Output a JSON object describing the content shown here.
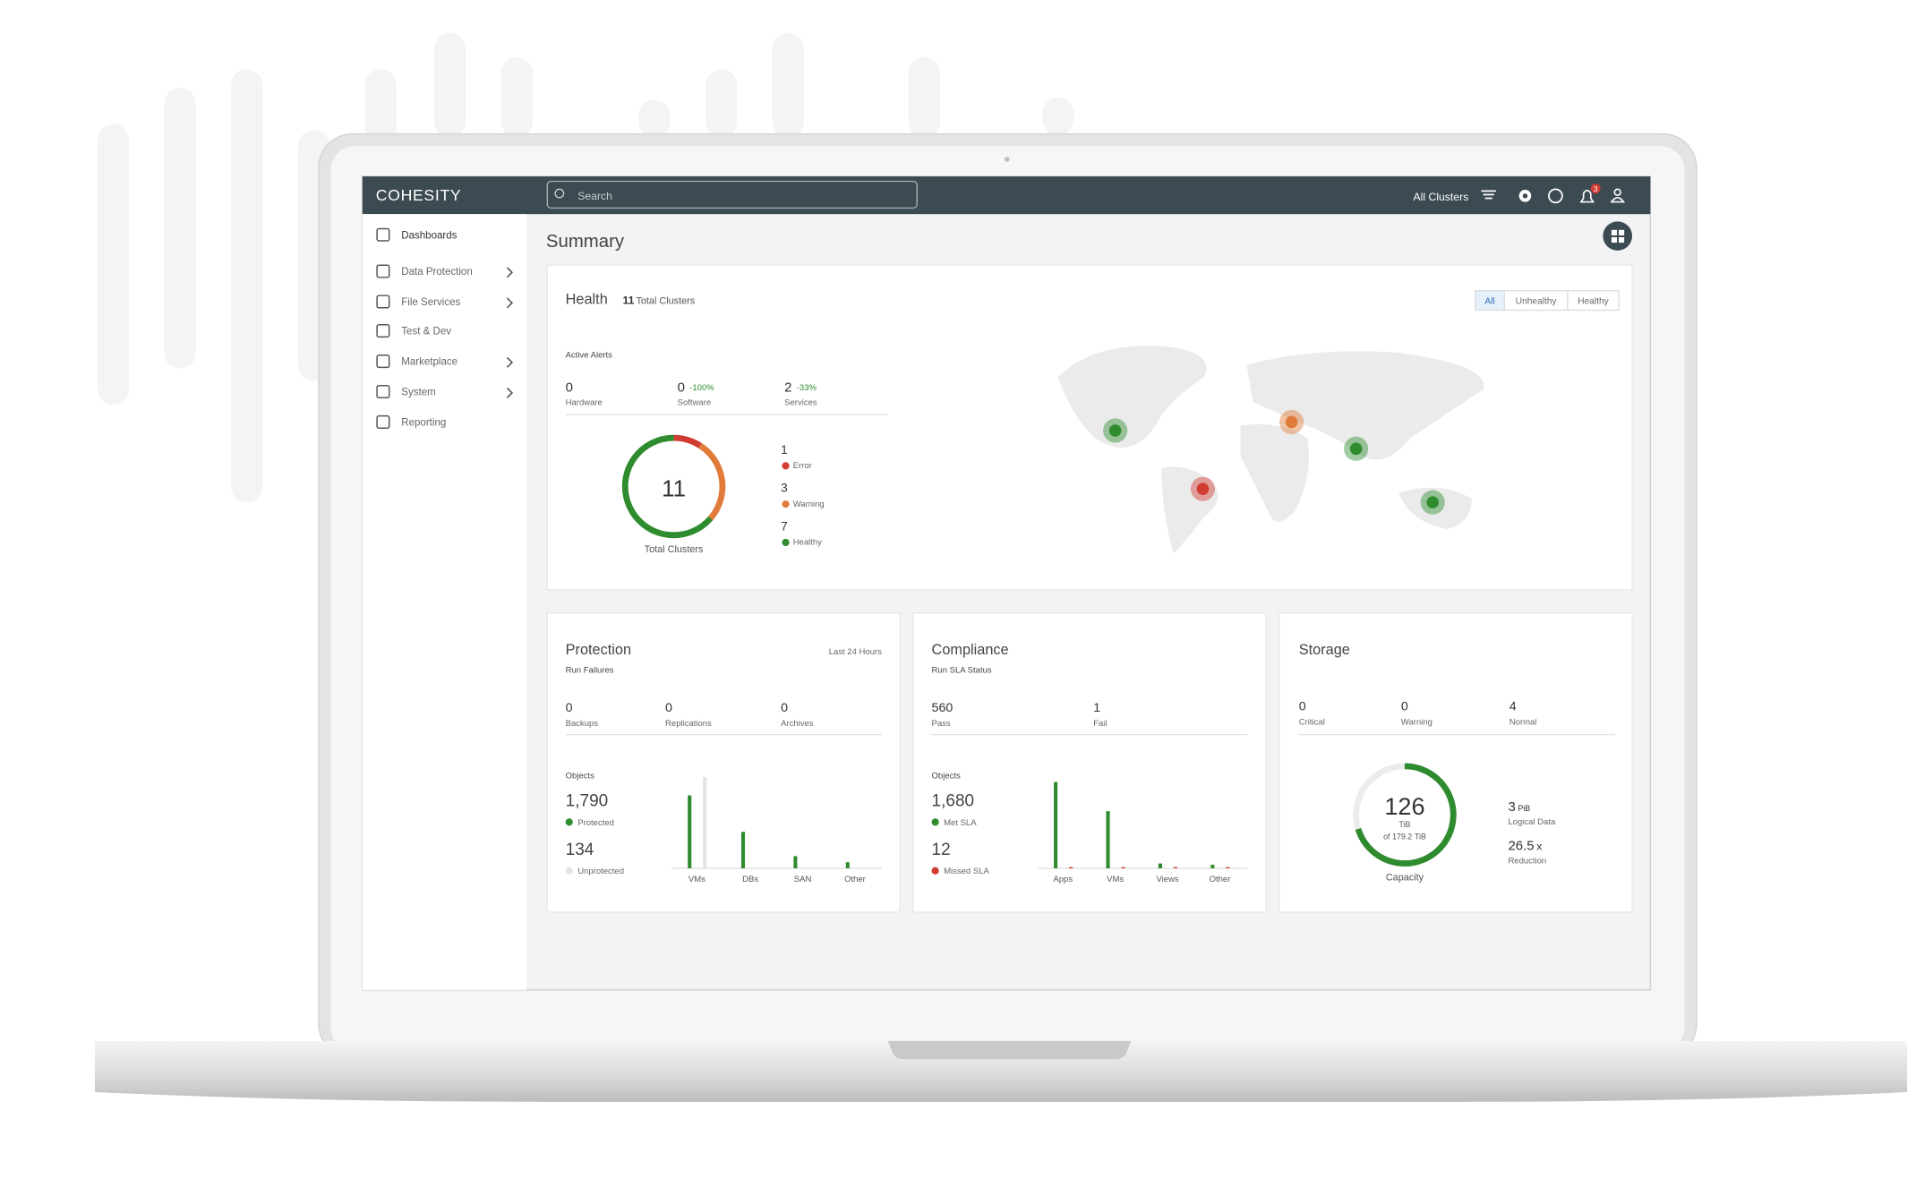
{
  "header": {
    "logo": "COHESITY",
    "search_placeholder": "Search",
    "cluster_filter": "All Clusters",
    "notifications": 3
  },
  "sidebar": {
    "items": [
      {
        "label": "Dashboards",
        "expandable": false
      },
      {
        "label": "Data Protection",
        "expandable": true
      },
      {
        "label": "File Services",
        "expandable": true
      },
      {
        "label": "Test & Dev",
        "expandable": false
      },
      {
        "label": "Marketplace",
        "expandable": true
      },
      {
        "label": "System",
        "expandable": true
      },
      {
        "label": "Reporting",
        "expandable": false
      }
    ]
  },
  "page_title": "Summary",
  "health": {
    "title": "Health",
    "total_clusters": 11,
    "total_clusters_label": "Total Clusters",
    "filters": [
      "All",
      "Unhealthy",
      "Healthy"
    ],
    "active_alerts_title": "Active Alerts",
    "alerts": [
      {
        "value": 0,
        "label": "Hardware"
      },
      {
        "value": 0,
        "change": "-100%",
        "label": "Software"
      },
      {
        "value": 2,
        "change": "-33%",
        "label": "Services"
      }
    ],
    "status": [
      {
        "value": 1,
        "label": "Error",
        "color": "#d23b32"
      },
      {
        "value": 3,
        "label": "Warning",
        "color": "#e07b39"
      },
      {
        "value": 7,
        "label": "Healthy",
        "color": "#2e8b2e"
      }
    ]
  },
  "protection": {
    "title": "Protection",
    "period": "Last 24 Hours",
    "subtitle": "Run Failures",
    "metrics": [
      {
        "value": 0,
        "label": "Backups"
      },
      {
        "value": 0,
        "label": "Replications"
      },
      {
        "value": 0,
        "label": "Archives"
      }
    ],
    "objects_title": "Objects",
    "primary": {
      "value": "1,790",
      "label": "Protected",
      "color": "#2e8b2e"
    },
    "secondary": {
      "value": "134",
      "label": "Unprotected",
      "color": "#e4e4e4"
    },
    "bars": {
      "categories": [
        "VMs",
        "DBs",
        "SAN",
        "Other"
      ],
      "ylim": [
        0,
        80
      ],
      "primary": [
        60,
        30,
        10,
        5
      ],
      "secondary": [
        75,
        0,
        0,
        0
      ]
    }
  },
  "compliance": {
    "title": "Compliance",
    "subtitle": "Run SLA Status",
    "metrics": [
      {
        "value": 560,
        "label": "Pass"
      },
      {
        "value": 1,
        "label": "Fail"
      }
    ],
    "objects_title": "Objects",
    "primary": {
      "value": "1,680",
      "label": "Met SLA",
      "color": "#2e8b2e"
    },
    "secondary": {
      "value": "12",
      "label": "Missed SLA",
      "color": "#d23b32"
    },
    "bars": {
      "categories": [
        "Apps",
        "VMs",
        "Views",
        "Other"
      ],
      "ylim": [
        0,
        80
      ],
      "primary": [
        71,
        47,
        4,
        3
      ],
      "secondary": [
        1,
        1,
        1,
        1
      ]
    }
  },
  "storage": {
    "title": "Storage",
    "metrics": [
      {
        "value": 0,
        "label": "Critical"
      },
      {
        "value": 0,
        "label": "Warning"
      },
      {
        "value": 4,
        "label": "Normal"
      }
    ],
    "capacity": {
      "used": 126,
      "unit": "TiB",
      "of": "of",
      "total": 179.2,
      "label": "Capacity"
    },
    "logical": {
      "value": 3,
      "unit": "PiB",
      "label": "Logical Data"
    },
    "reduction": {
      "value": 26.5,
      "unit": "x",
      "label": "Reduction"
    }
  }
}
